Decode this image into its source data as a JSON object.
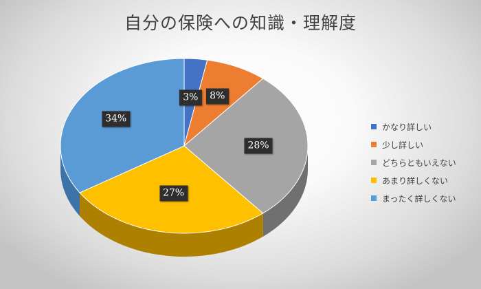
{
  "chart_data": {
    "type": "pie",
    "title": "自分の保険への知識・理解度",
    "categories": [
      "かなり詳しい",
      "少し詳しい",
      "どちらともいえない",
      "あまり詳しくない",
      "まったく詳しくない"
    ],
    "values": [
      3,
      8,
      28,
      27,
      34
    ],
    "data_labels": [
      "3%",
      "8%",
      "28%",
      "27%",
      "34%"
    ],
    "colors": [
      "#4472C4",
      "#ED7D31",
      "#A5A5A5",
      "#FFC000",
      "#5B9BD5"
    ],
    "side_colors": [
      "#2F5597",
      "#B35A1F",
      "#707070",
      "#AE8000",
      "#3D73A6"
    ],
    "style": "3d",
    "legend_position": "right"
  }
}
